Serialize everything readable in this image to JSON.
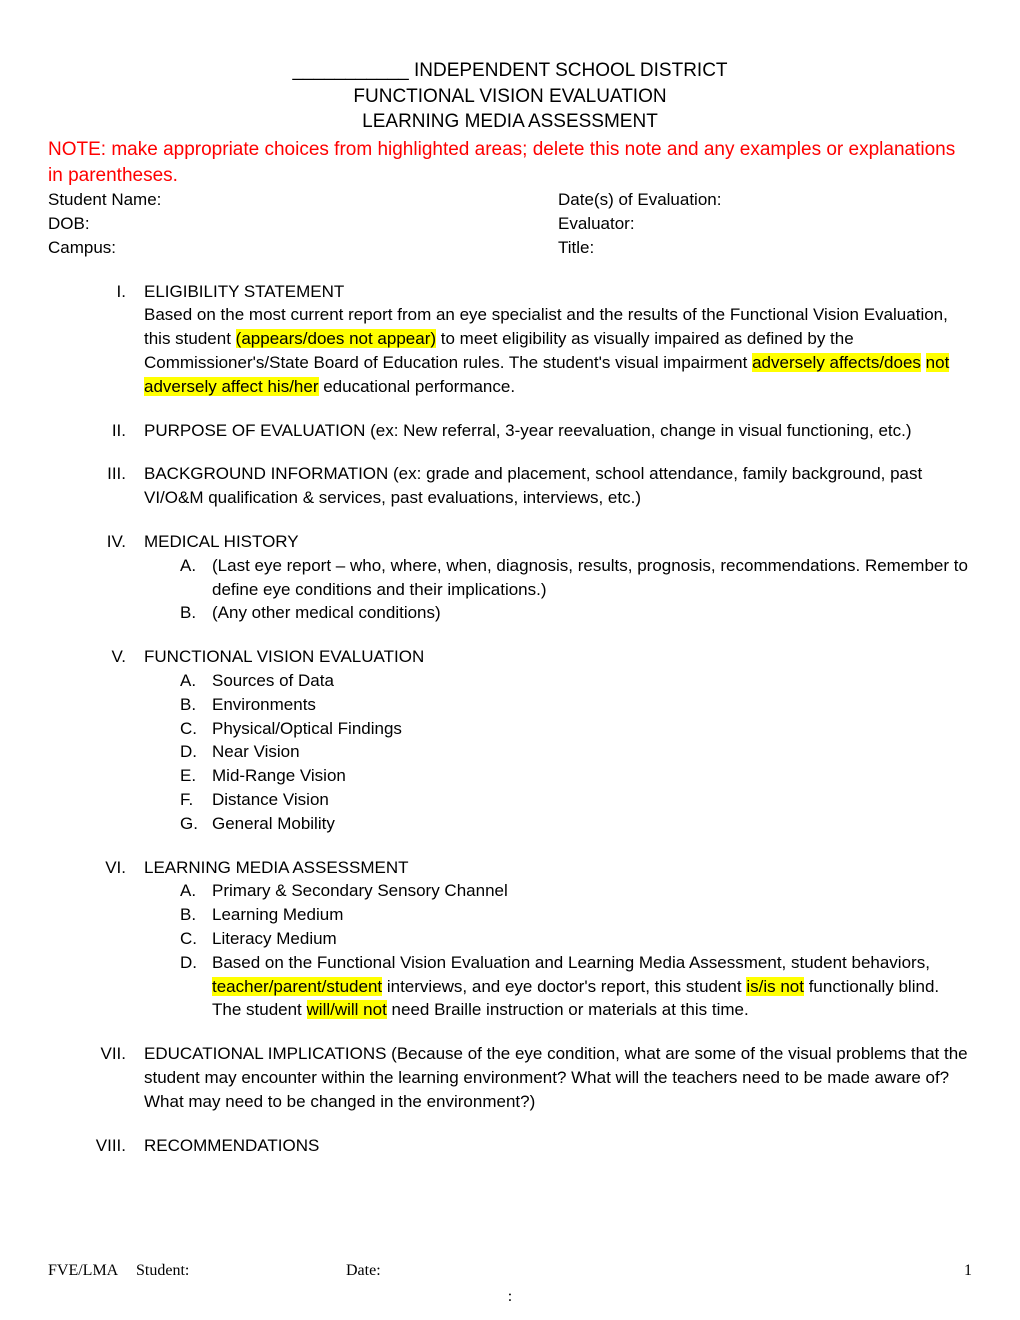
{
  "header": {
    "line1": "___________ INDEPENDENT SCHOOL DISTRICT",
    "line2": "FUNCTIONAL VISION EVALUATION",
    "line3": "LEARNING MEDIA ASSESSMENT"
  },
  "note_text": "NOTE: make appropriate choices from highlighted areas; delete this note and any examples or explanations in parentheses.",
  "info": {
    "student_name_label": "Student Name:",
    "date_eval_label": "Date(s) of Evaluation:",
    "dob_label": "DOB:",
    "evaluator_label": "Evaluator:",
    "campus_label": "Campus:",
    "title_label": "Title:"
  },
  "sections": {
    "s1": {
      "roman": "I.",
      "title": "ELIGIBILITY STATEMENT",
      "body_pre": "Based on the most current report from an eye specialist and the results of the Functional Vision Evaluation, this student ",
      "hl1": "(appears/does not appear)",
      "body_mid": " to meet eligibility as visually impaired as defined by the Commissioner's/State Board of Education rules. The student's visual impairment ",
      "hl2_line1": "adversely affects/does",
      "hl2_line2": "not adversely affect his/her",
      "body_end": " educational performance."
    },
    "s2": {
      "roman": "II.",
      "title": "PURPOSE OF EVALUATION (ex: New referral, 3-year reevaluation, change in visual functioning, etc.)"
    },
    "s3": {
      "roman": "III.",
      "title": "BACKGROUND INFORMATION (ex: grade and placement, school attendance, family background, past VI/O&M qualification & services, past evaluations, interviews, etc.)"
    },
    "s4": {
      "roman": "IV.",
      "title": "MEDICAL HISTORY",
      "items": {
        "a_letter": "A.",
        "a_text": "(Last eye report – who, where, when, diagnosis, results, prognosis, recommendations. Remember to define eye conditions and their implications.)",
        "b_letter": "B.",
        "b_text": "(Any other medical conditions)"
      }
    },
    "s5": {
      "roman": "V.",
      "title": "FUNCTIONAL VISION EVALUATION",
      "items": {
        "a_letter": "A.",
        "a_text": "Sources of Data",
        "b_letter": "B.",
        "b_text": "Environments",
        "c_letter": "C.",
        "c_text": "Physical/Optical Findings",
        "d_letter": "D.",
        "d_text": "Near Vision",
        "e_letter": "E.",
        "e_text": "Mid-Range Vision",
        "f_letter": "F.",
        "f_text": "Distance Vision",
        "g_letter": "G.",
        "g_text": "General Mobility"
      }
    },
    "s6": {
      "roman": "VI.",
      "title": "LEARNING MEDIA ASSESSMENT",
      "items": {
        "a_letter": "A.",
        "a_text": "Primary & Secondary Sensory Channel",
        "b_letter": "B.",
        "b_text": "Learning Medium",
        "c_letter": "C.",
        "c_text": "Literacy Medium",
        "d_letter": "D.",
        "d_pre": "Based on the Functional Vision Evaluation and Learning Media Assessment, student behaviors, ",
        "d_hl1": "teacher/parent/student",
        "d_mid1": " interviews, and eye doctor's report, this student ",
        "d_hl2": "is/is not",
        "d_mid2": " functionally blind. The student ",
        "d_hl3": "will/will not",
        "d_end": " need Braille instruction or materials at this time."
      }
    },
    "s7": {
      "roman": "VII.",
      "title": "EDUCATIONAL IMPLICATIONS (Because of the eye condition, what are some of the visual problems that the student may encounter within the learning environment? What will the teachers need to be made aware of? What may need to be changed in the environment?)"
    },
    "s8": {
      "roman": "VIII.",
      "title": "RECOMMENDATIONS"
    }
  },
  "footer": {
    "left": "FVE/LMA",
    "student": "Student:",
    "date": "Date:",
    "page": "1",
    "colon": ":"
  },
  "colors": {
    "note_color": "#ff0000",
    "highlight": "#ffff00",
    "text": "#000000",
    "background": "#ffffff"
  },
  "typography": {
    "body_font": "Comic Sans MS",
    "footer_font": "Times New Roman",
    "header_fontsize": 19,
    "body_fontsize": 17,
    "footer_fontsize": 16
  }
}
